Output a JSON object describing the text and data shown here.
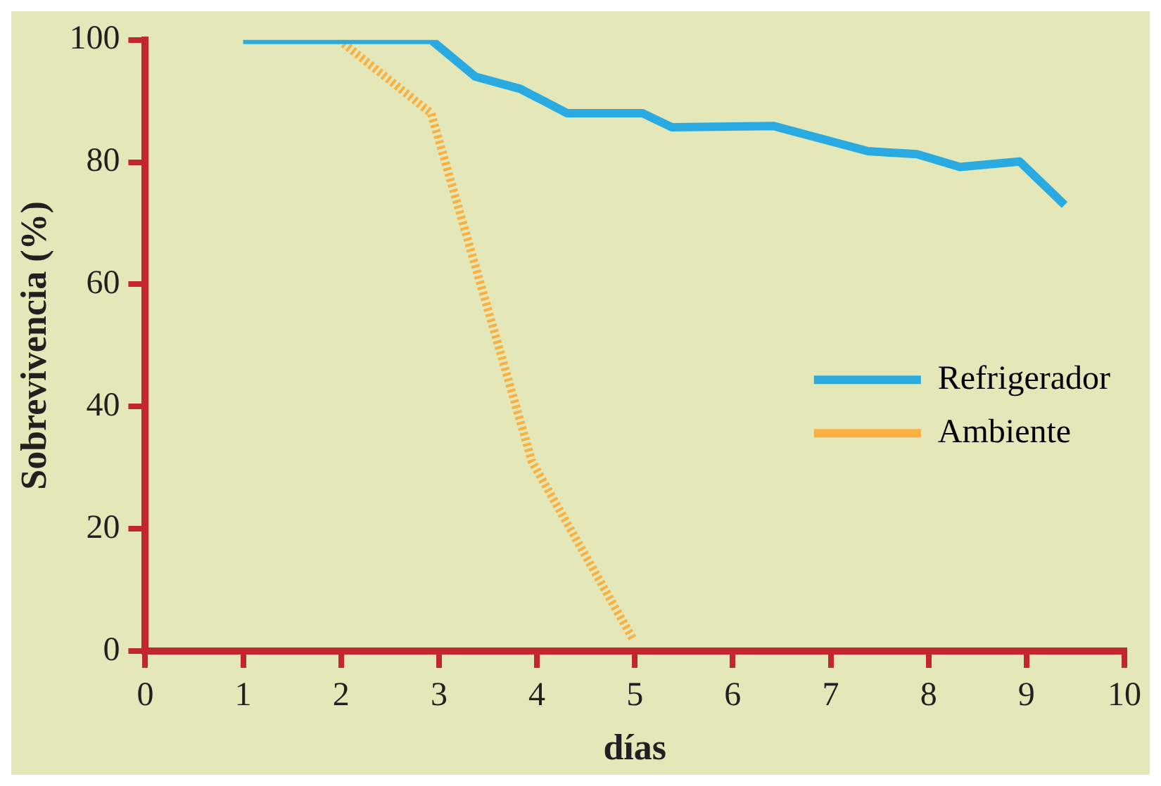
{
  "chart_data": {
    "type": "line",
    "xlabel": "días",
    "ylabel": "Sobrevivencia (%)",
    "xlim": [
      0,
      10
    ],
    "xticks": [
      0,
      1,
      2,
      3,
      4,
      5,
      6,
      7,
      8,
      9,
      10
    ],
    "ylim": [
      0,
      100
    ],
    "yticks": [
      0,
      20,
      40,
      60,
      80,
      100
    ],
    "grid": false,
    "legend": "right",
    "marker": "none",
    "series": [
      {
        "name": "Refrigerador",
        "color": "#29abe2",
        "line_style": "solid",
        "x": [
          1,
          2.92,
          3.37,
          3.83,
          4.31,
          5.08,
          5.38,
          6.42,
          7.38,
          7.88,
          8.32,
          8.93,
          9.39
        ],
        "values": [
          100,
          100,
          94,
          92,
          88,
          88,
          85.7,
          85.9,
          81.8,
          81.3,
          79.2,
          80.1,
          73
        ]
      },
      {
        "name": "Ambiente",
        "color": "#fbb040",
        "line_style": "dotted",
        "x": [
          1.98,
          2.92,
          3.95,
          4.98
        ],
        "values": [
          100,
          88,
          31,
          2
        ]
      }
    ]
  }
}
